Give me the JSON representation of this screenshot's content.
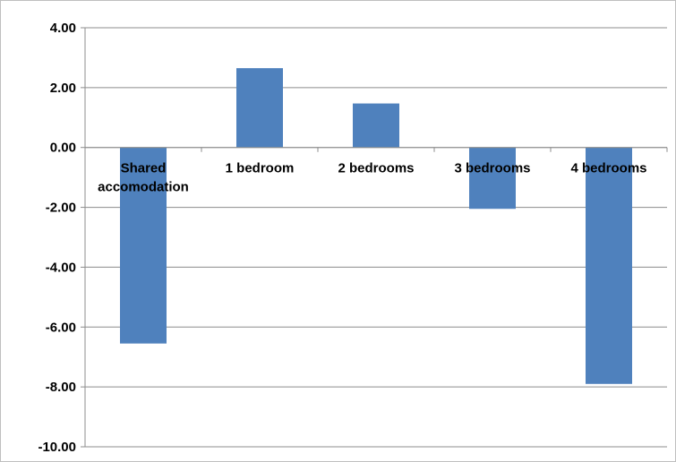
{
  "chart_data": {
    "type": "bar",
    "title": "",
    "xlabel": "",
    "ylabel": "",
    "categories": [
      [
        "Shared",
        "accomodation"
      ],
      [
        "1 bedroom"
      ],
      [
        "2 bedrooms"
      ],
      [
        "3 bedrooms"
      ],
      [
        "4 bedrooms"
      ]
    ],
    "values": [
      -6.55,
      2.65,
      1.47,
      -2.05,
      -7.9
    ],
    "ylim": [
      -10,
      4
    ],
    "yticks": [
      4,
      2,
      0,
      -2,
      -4,
      -6,
      -8,
      -10
    ],
    "ytick_labels": [
      "4.00",
      "2.00",
      "0.00",
      "-2.00",
      "-4.00",
      "-6.00",
      "-8.00",
      "-10.00"
    ],
    "grid": true,
    "legend": "none",
    "colors": {
      "bar": "#4f81bd",
      "grid": "#8c8c8c",
      "axis": "#8c8c8c",
      "frame": "#bfbfbf"
    }
  }
}
